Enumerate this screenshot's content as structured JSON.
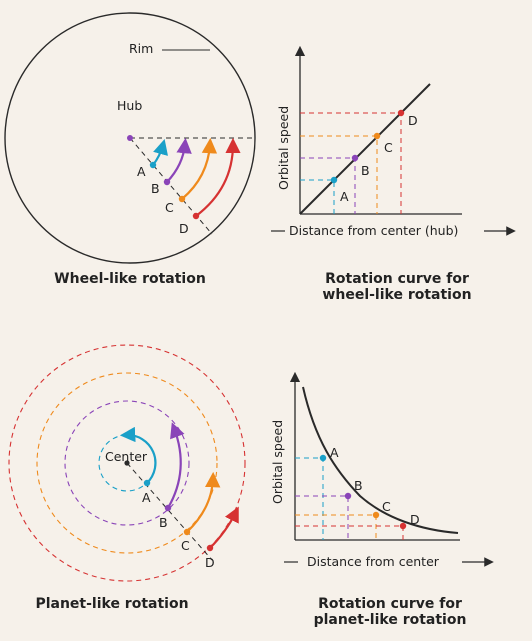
{
  "colors": {
    "a": "#1aa0c8",
    "b": "#8a44b8",
    "c": "#ef8a1c",
    "d": "#d63232",
    "line": "#2a2a2a",
    "bg": "#f6f1ea"
  },
  "wheel": {
    "rim_label": "Rim",
    "hub_label": "Hub",
    "point_labels": [
      "A",
      "B",
      "C",
      "D"
    ],
    "caption": "Wheel-like rotation"
  },
  "wheel_curve": {
    "y_label": "Orbital speed",
    "x_label": "Distance from center (hub)",
    "point_labels": [
      "A",
      "B",
      "C",
      "D"
    ],
    "caption_line1": "Rotation curve for",
    "caption_line2": "wheel-like rotation"
  },
  "planet": {
    "center_label": "Center",
    "point_labels": [
      "A",
      "B",
      "C",
      "D"
    ],
    "caption": "Planet-like rotation"
  },
  "planet_curve": {
    "y_label": "Orbital speed",
    "x_label": "Distance from center",
    "point_labels": [
      "A",
      "B",
      "C",
      "D"
    ],
    "caption_line1": "Rotation curve for",
    "caption_line2": "planet-like rotation"
  }
}
